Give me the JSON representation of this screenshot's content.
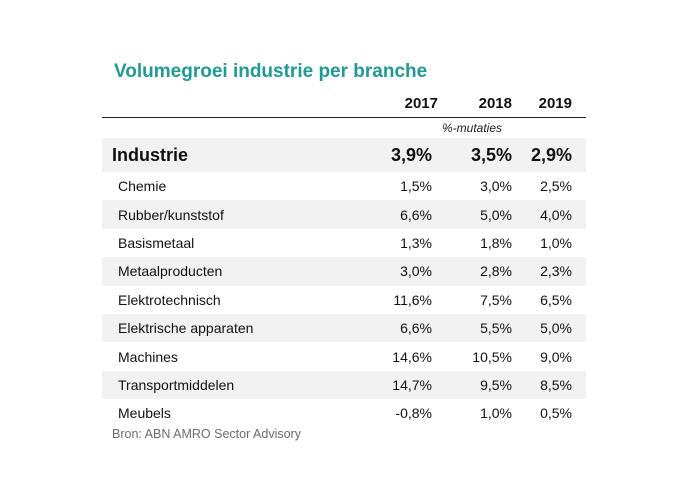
{
  "title": "Volumegroei industrie per branche",
  "columns": [
    "2017",
    "2018",
    "2019"
  ],
  "unit_note": "%-mutaties",
  "total": {
    "label": "Industrie",
    "values": [
      "3,9%",
      "3,5%",
      "2,9%"
    ]
  },
  "rows": [
    {
      "label": "Chemie",
      "values": [
        "1,5%",
        "3,0%",
        "2,5%"
      ]
    },
    {
      "label": "Rubber/kunststof",
      "values": [
        "6,6%",
        "5,0%",
        "4,0%"
      ]
    },
    {
      "label": "Basismetaal",
      "values": [
        "1,3%",
        "1,8%",
        "1,0%"
      ]
    },
    {
      "label": "Metaalproducten",
      "values": [
        "3,0%",
        "2,8%",
        "2,3%"
      ]
    },
    {
      "label": "Elektrotechnisch",
      "values": [
        "11,6%",
        "7,5%",
        "6,5%"
      ]
    },
    {
      "label": "Elektrische apparaten",
      "values": [
        "6,6%",
        "5,5%",
        "5,0%"
      ]
    },
    {
      "label": "Machines",
      "values": [
        "14,6%",
        "10,5%",
        "9,0%"
      ]
    },
    {
      "label": "Transportmiddelen",
      "values": [
        "14,7%",
        "9,5%",
        "8,5%"
      ]
    },
    {
      "label": "Meubels",
      "values": [
        "-0,8%",
        "1,0%",
        "0,5%"
      ]
    }
  ],
  "source": "Bron: ABN AMRO Sector Advisory",
  "colors": {
    "title": "#1f9a96",
    "row_shade": "#f1f1f1",
    "source_text": "#6b6b6b"
  }
}
